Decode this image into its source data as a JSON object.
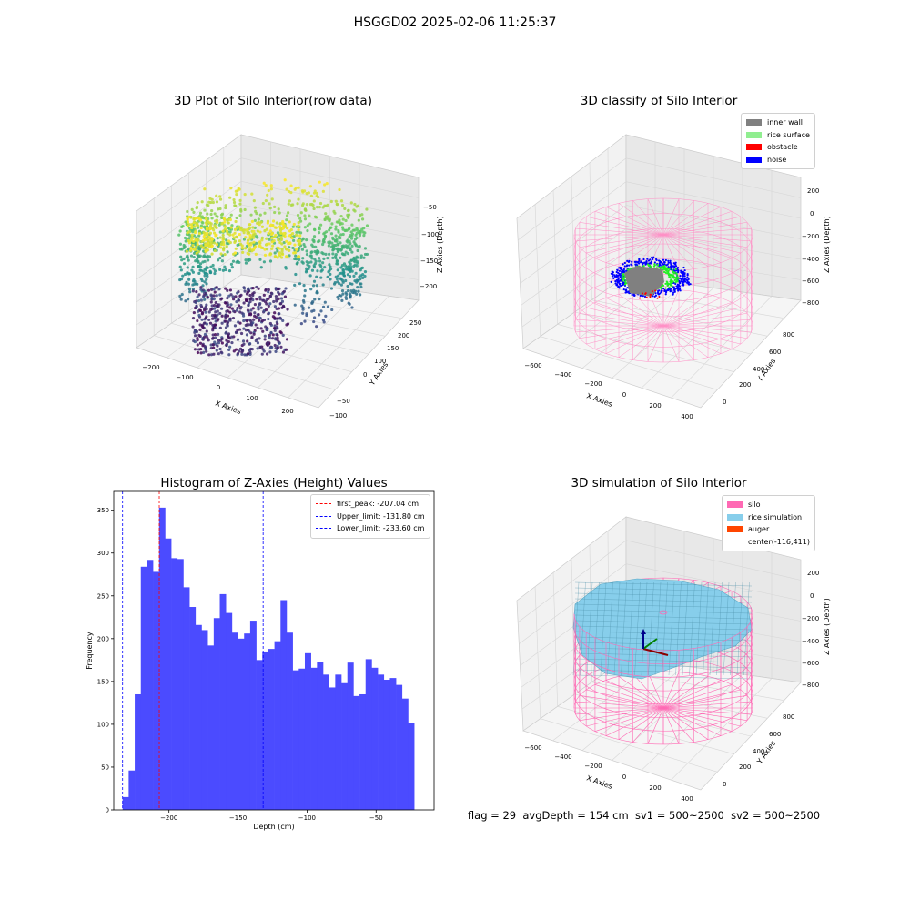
{
  "suptitle": "HSGGD02 2025-02-06 11:25:37",
  "panels": {
    "raw": {
      "title": "3D Plot of Silo Interior(row data)",
      "xlabel": "X Axies",
      "ylabel": "Y Axies",
      "zlabel": "Z Axies (Depth)",
      "xticks": [
        "−200",
        "−100",
        "0",
        "100",
        "200"
      ],
      "yticks": [
        "−100",
        "−50",
        "0",
        "50",
        "100",
        "150",
        "200",
        "250"
      ],
      "zticks": [
        "−50",
        "−100",
        "−150",
        "−200"
      ]
    },
    "classify": {
      "title": "3D classify of Silo Interior",
      "xlabel": "X Axies",
      "ylabel": "Y Axies",
      "zlabel": "Z Axies (Depth)",
      "xticks": [
        "−600",
        "−400",
        "−200",
        "0",
        "200",
        "400"
      ],
      "yticks": [
        "0",
        "200",
        "400",
        "600",
        "800"
      ],
      "zticks": [
        "200",
        "0",
        "−200",
        "−400",
        "−600",
        "−800"
      ],
      "legend": [
        {
          "label": "inner wall",
          "color": "#808080"
        },
        {
          "label": "rice surface",
          "color": "#90ee90"
        },
        {
          "label": "obstacle",
          "color": "#ff0000"
        },
        {
          "label": "noise",
          "color": "#0000ff"
        }
      ]
    },
    "simulation": {
      "title": "3D simulation of Silo Interior",
      "xlabel": "X Axies",
      "ylabel": "Y Axies",
      "zlabel": "Z Axies (Depth)",
      "xticks": [
        "−600",
        "−400",
        "−200",
        "0",
        "200",
        "400"
      ],
      "yticks": [
        "0",
        "200",
        "400",
        "600",
        "800"
      ],
      "zticks": [
        "200",
        "0",
        "−200",
        "−400",
        "−600",
        "−800"
      ],
      "legend": [
        {
          "label": "silo",
          "color": "#ff69b4"
        },
        {
          "label": "rice simulation",
          "color": "#87ceeb"
        },
        {
          "label": "auger",
          "color": "#ff4500"
        },
        {
          "label": "center(-116,411)",
          "color": ""
        }
      ]
    }
  },
  "status_line": "flag = 29  avgDepth = 154 cm  sv1 = 500~2500  sv2 = 500~2500",
  "chart_data": {
    "type": "bar",
    "title": "Histogram of Z-Axies (Height) Values",
    "xlabel": "Depth (cm)",
    "ylabel": "Frequency",
    "xlim": [
      -240,
      -8
    ],
    "ylim": [
      0,
      372
    ],
    "bin_start": -233.6,
    "bin_width": 4.4,
    "values": [
      15,
      46,
      135,
      284,
      292,
      278,
      353,
      317,
      294,
      293,
      260,
      237,
      216,
      210,
      192,
      224,
      252,
      230,
      207,
      200,
      206,
      221,
      175,
      185,
      188,
      197,
      245,
      207,
      163,
      165,
      183,
      166,
      173,
      158,
      143,
      158,
      148,
      172,
      133,
      135,
      176,
      166,
      158,
      152,
      154,
      146,
      130,
      101
    ],
    "bar_color": "#4b4bff",
    "xticks": [
      -200,
      -150,
      -100,
      -50
    ],
    "xtick_labels": [
      "−200",
      "−150",
      "−100",
      "−50"
    ],
    "yticks": [
      0,
      50,
      100,
      150,
      200,
      250,
      300,
      350
    ],
    "vlines": [
      {
        "label": "first_peak: -207.04 cm",
        "x": -207.04,
        "color": "#ff0000"
      },
      {
        "label": "Upper_limit: -131.80 cm",
        "x": -131.8,
        "color": "#0000ff"
      },
      {
        "label": "Lower_limit: -233.60 cm",
        "x": -233.6,
        "color": "#0000ff"
      }
    ],
    "legend_position": "top-right",
    "grid": false
  }
}
